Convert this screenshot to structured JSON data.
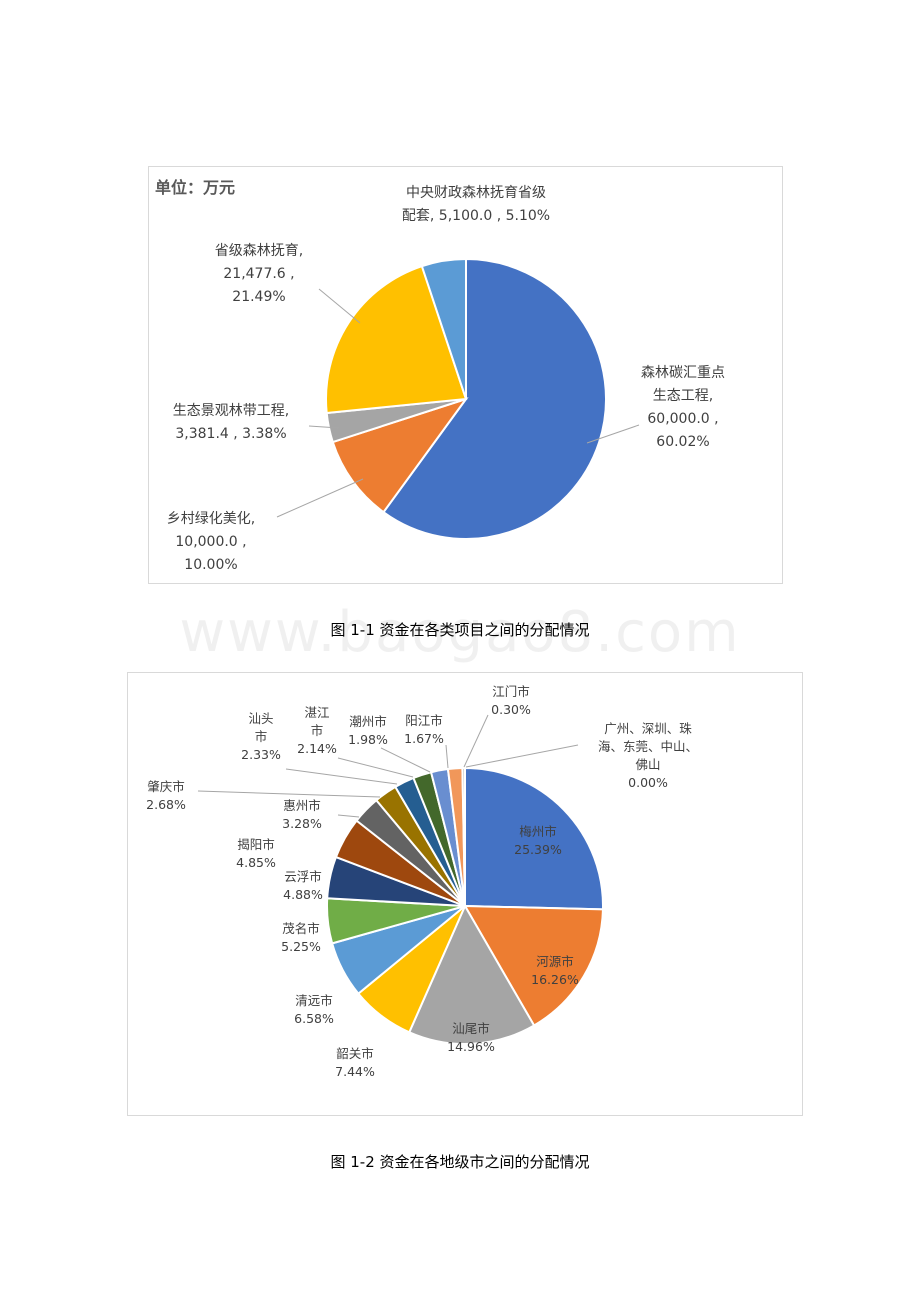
{
  "watermark": "www.baogao8.com",
  "captions": {
    "fig1": "图 1-1 资金在各类项目之间的分配情况",
    "fig2": "图 1-2 资金在各地级市之间的分配情况"
  },
  "chart_data": [
    {
      "type": "pie",
      "unit_label": "单位：万元",
      "slices": [
        {
          "label_lines": [
            "森林碳汇重点",
            "生态工程,",
            "60,000.0 ,",
            "60.02%"
          ],
          "value": 60000.0,
          "percent": 60.02,
          "color": "#4472C4"
        },
        {
          "label_lines": [
            "乡村绿化美化,",
            "10,000.0 ,",
            "10.00%"
          ],
          "value": 10000.0,
          "percent": 10.0,
          "color": "#ED7D31"
        },
        {
          "label_lines": [
            "生态景观林带工程,",
            "3,381.4 , 3.38%"
          ],
          "value": 3381.4,
          "percent": 3.38,
          "color": "#A5A5A5"
        },
        {
          "label_lines": [
            "省级森林抚育,",
            "21,477.6 ,",
            "21.49%"
          ],
          "value": 21477.6,
          "percent": 21.49,
          "color": "#FFC000"
        },
        {
          "label_lines": [
            "中央财政森林抚育省级",
            "配套, 5,100.0 , 5.10%"
          ],
          "value": 5100.0,
          "percent": 5.1,
          "color": "#5B9BD5"
        }
      ]
    },
    {
      "type": "pie",
      "slices": [
        {
          "label_lines": [
            "梅州市",
            "25.39%"
          ],
          "percent": 25.39,
          "color": "#4472C4"
        },
        {
          "label_lines": [
            "河源市",
            "16.26%"
          ],
          "percent": 16.26,
          "color": "#ED7D31"
        },
        {
          "label_lines": [
            "汕尾市",
            "14.96%"
          ],
          "percent": 14.96,
          "color": "#A5A5A5"
        },
        {
          "label_lines": [
            "韶关市",
            "7.44%"
          ],
          "percent": 7.44,
          "color": "#FFC000"
        },
        {
          "label_lines": [
            "清远市",
            "6.58%"
          ],
          "percent": 6.58,
          "color": "#5B9BD5"
        },
        {
          "label_lines": [
            "茂名市",
            "5.25%"
          ],
          "percent": 5.25,
          "color": "#70AD47"
        },
        {
          "label_lines": [
            "云浮市",
            "4.88%"
          ],
          "percent": 4.88,
          "color": "#264478"
        },
        {
          "label_lines": [
            "揭阳市",
            "4.85%"
          ],
          "percent": 4.85,
          "color": "#9E480E"
        },
        {
          "label_lines": [
            "惠州市",
            "3.28%"
          ],
          "percent": 3.28,
          "color": "#636363"
        },
        {
          "label_lines": [
            "肇庆市",
            "2.68%"
          ],
          "percent": 2.68,
          "color": "#997300"
        },
        {
          "label_lines": [
            "汕头",
            "市",
            "2.33%"
          ],
          "percent": 2.33,
          "color": "#255E91"
        },
        {
          "label_lines": [
            "湛江",
            "市",
            "2.14%"
          ],
          "percent": 2.14,
          "color": "#43682B"
        },
        {
          "label_lines": [
            "潮州市",
            "1.98%"
          ],
          "percent": 1.98,
          "color": "#698ED0"
        },
        {
          "label_lines": [
            "阳江市",
            "1.67%"
          ],
          "percent": 1.67,
          "color": "#F1975A"
        },
        {
          "label_lines": [
            "江门市",
            "0.30%"
          ],
          "percent": 0.3,
          "color": "#B7B7B7"
        },
        {
          "label_lines": [
            "广州、深圳、珠",
            "海、东莞、中山、",
            "佛山",
            "0.00%"
          ],
          "percent": 0.0,
          "color": "#FFCD33"
        }
      ]
    }
  ]
}
